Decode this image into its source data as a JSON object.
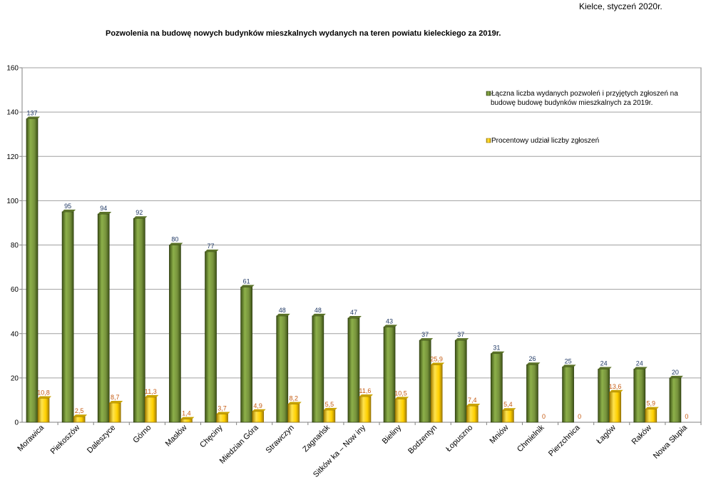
{
  "header": {
    "date_note": "Kielce, styczeń 2020r."
  },
  "chart_data": {
    "type": "bar",
    "title": "Pozwolenia na  budowę nowych budynków mieszkalnych wydanych na  teren powiatu kieleckiego za 2019r.",
    "xlabel": "",
    "ylabel": "",
    "ylim": [
      0,
      160
    ],
    "yticks": [
      "0",
      "20",
      "40",
      "60",
      "80",
      "100",
      "120",
      "140",
      "160"
    ],
    "grid": true,
    "legend_position": "right",
    "categories": [
      "Morawica",
      "Piekoszów",
      "Daleszyce",
      "Górno",
      "Masłów",
      "Chęciny",
      "Miedzian Góra",
      "Strawczyn",
      "Zagnańsk",
      "Sitków ka – Now iny",
      "Bieliny",
      "Bodzentyn",
      "Łopuszno",
      "Mniów",
      "Chmielnik",
      "Pierzchnica",
      "Łagów",
      "Raków",
      "Nowa Słupia"
    ],
    "series": [
      {
        "name_lines": [
          "Łączna liczba wydanych pozwoleń i przyjętych zgłoszeń na",
          "budowę budowę budynków mieszkalnych za 2019r."
        ],
        "color": "#77933c",
        "values": [
          137,
          95,
          94,
          92,
          80,
          77,
          61,
          48,
          48,
          47,
          43,
          37,
          37,
          31,
          26,
          25,
          24,
          24,
          20
        ],
        "labels": [
          "137",
          "95",
          "94",
          "92",
          "80",
          "77",
          "61",
          "48",
          "48",
          "47",
          "43",
          "37",
          "37",
          "31",
          "26",
          "25",
          "24",
          "24",
          "20"
        ]
      },
      {
        "name_lines": [
          "Procentowy udział liczby zgłoszeń"
        ],
        "color": "#ffd000",
        "values": [
          10.8,
          2.5,
          8.7,
          11.3,
          1.4,
          3.7,
          4.9,
          8.2,
          5.5,
          11.6,
          10.5,
          25.9,
          7.4,
          5.4,
          0,
          0,
          13.6,
          5.9,
          0
        ],
        "labels": [
          "10,8",
          "2,5",
          "8,7",
          "11,3",
          "1,4",
          "3,7",
          "4,9",
          "8,2",
          "5,5",
          "11,6",
          "10,5",
          "25,9",
          "7,4",
          "5,4",
          "0",
          "0",
          "13,6",
          "5,9",
          "0"
        ]
      }
    ]
  }
}
